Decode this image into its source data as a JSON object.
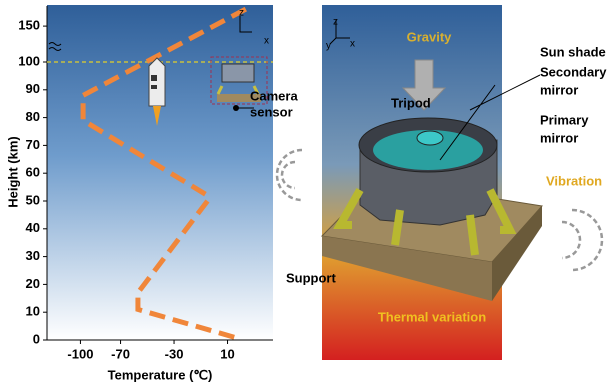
{
  "chart_data": {
    "type": "line",
    "y_label": "Height (km)",
    "x_label": "Temperature (℃)",
    "xlim": [
      -125,
      44
    ],
    "xticks": [
      -100,
      -70,
      -30,
      10
    ],
    "ylim": [
      0,
      178
    ],
    "yticks": [
      0,
      10,
      20,
      30,
      40,
      50,
      60,
      70,
      80,
      90,
      100,
      150
    ],
    "axis_break": 100,
    "reference_line": 100,
    "grid": false,
    "series": [
      {
        "color": "#f0863a",
        "x": [
          15,
          -57,
          -57,
          -5,
          -5,
          -98,
          -98,
          25
        ],
        "values": [
          1,
          11,
          17,
          50,
          52,
          79,
          88,
          175
        ]
      }
    ],
    "annotation": [
      "Camera",
      "sensor"
    ],
    "axis_icon": [
      "z",
      "x"
    ]
  },
  "diagram": {
    "axes": [
      "z",
      "y",
      "x"
    ],
    "gravity": "Gravity",
    "sun_shade": "Sun shade",
    "secondary_mirror": [
      "Secondary",
      "mirror"
    ],
    "tripod": "Tripod",
    "primary_mirror": [
      "Primary",
      "mirror"
    ],
    "vibration": "Vibration",
    "support": "Support",
    "thermal": "Thermal variation"
  }
}
